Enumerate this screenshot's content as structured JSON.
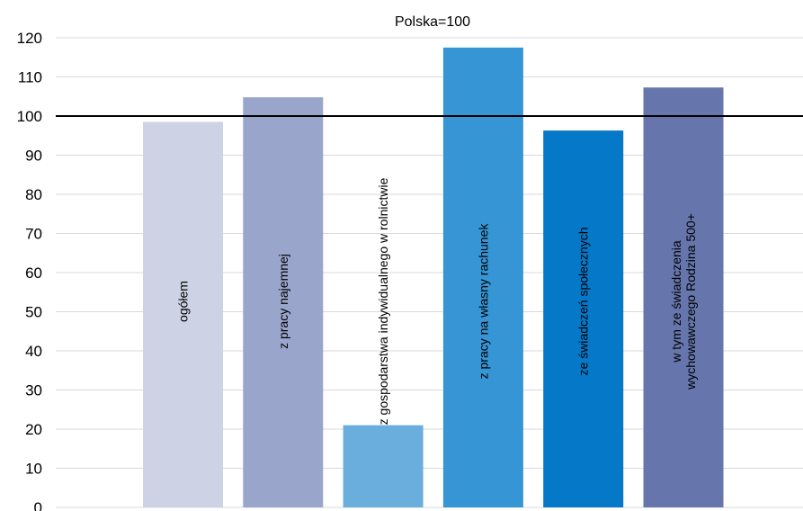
{
  "chart_data": {
    "type": "bar",
    "title": "Polska=100",
    "xlabel": "",
    "ylabel": "",
    "ylim": [
      0,
      120
    ],
    "yticks": [
      0,
      10,
      20,
      30,
      40,
      50,
      60,
      70,
      80,
      90,
      100,
      110,
      120
    ],
    "grid": true,
    "legend": "none",
    "reference_line": 100,
    "categories": [
      [
        "ogółem"
      ],
      [
        "z pracy najemnej"
      ],
      [
        "z gospodarstwa indywidualnego w rolnictwie"
      ],
      [
        "z pracy na własny rachunek"
      ],
      [
        "ze świadczeń społecznych"
      ],
      [
        "w tym ze świadczenia",
        "wychowawczego Rodzina 500+"
      ]
    ],
    "values": [
      98.5,
      104.8,
      21,
      117.5,
      96.3,
      107.3
    ],
    "colors": [
      "#CDD3E5",
      "#9AA5CC",
      "#6AAEDD",
      "#3695D5",
      "#0578C8",
      "#6676AC"
    ]
  }
}
